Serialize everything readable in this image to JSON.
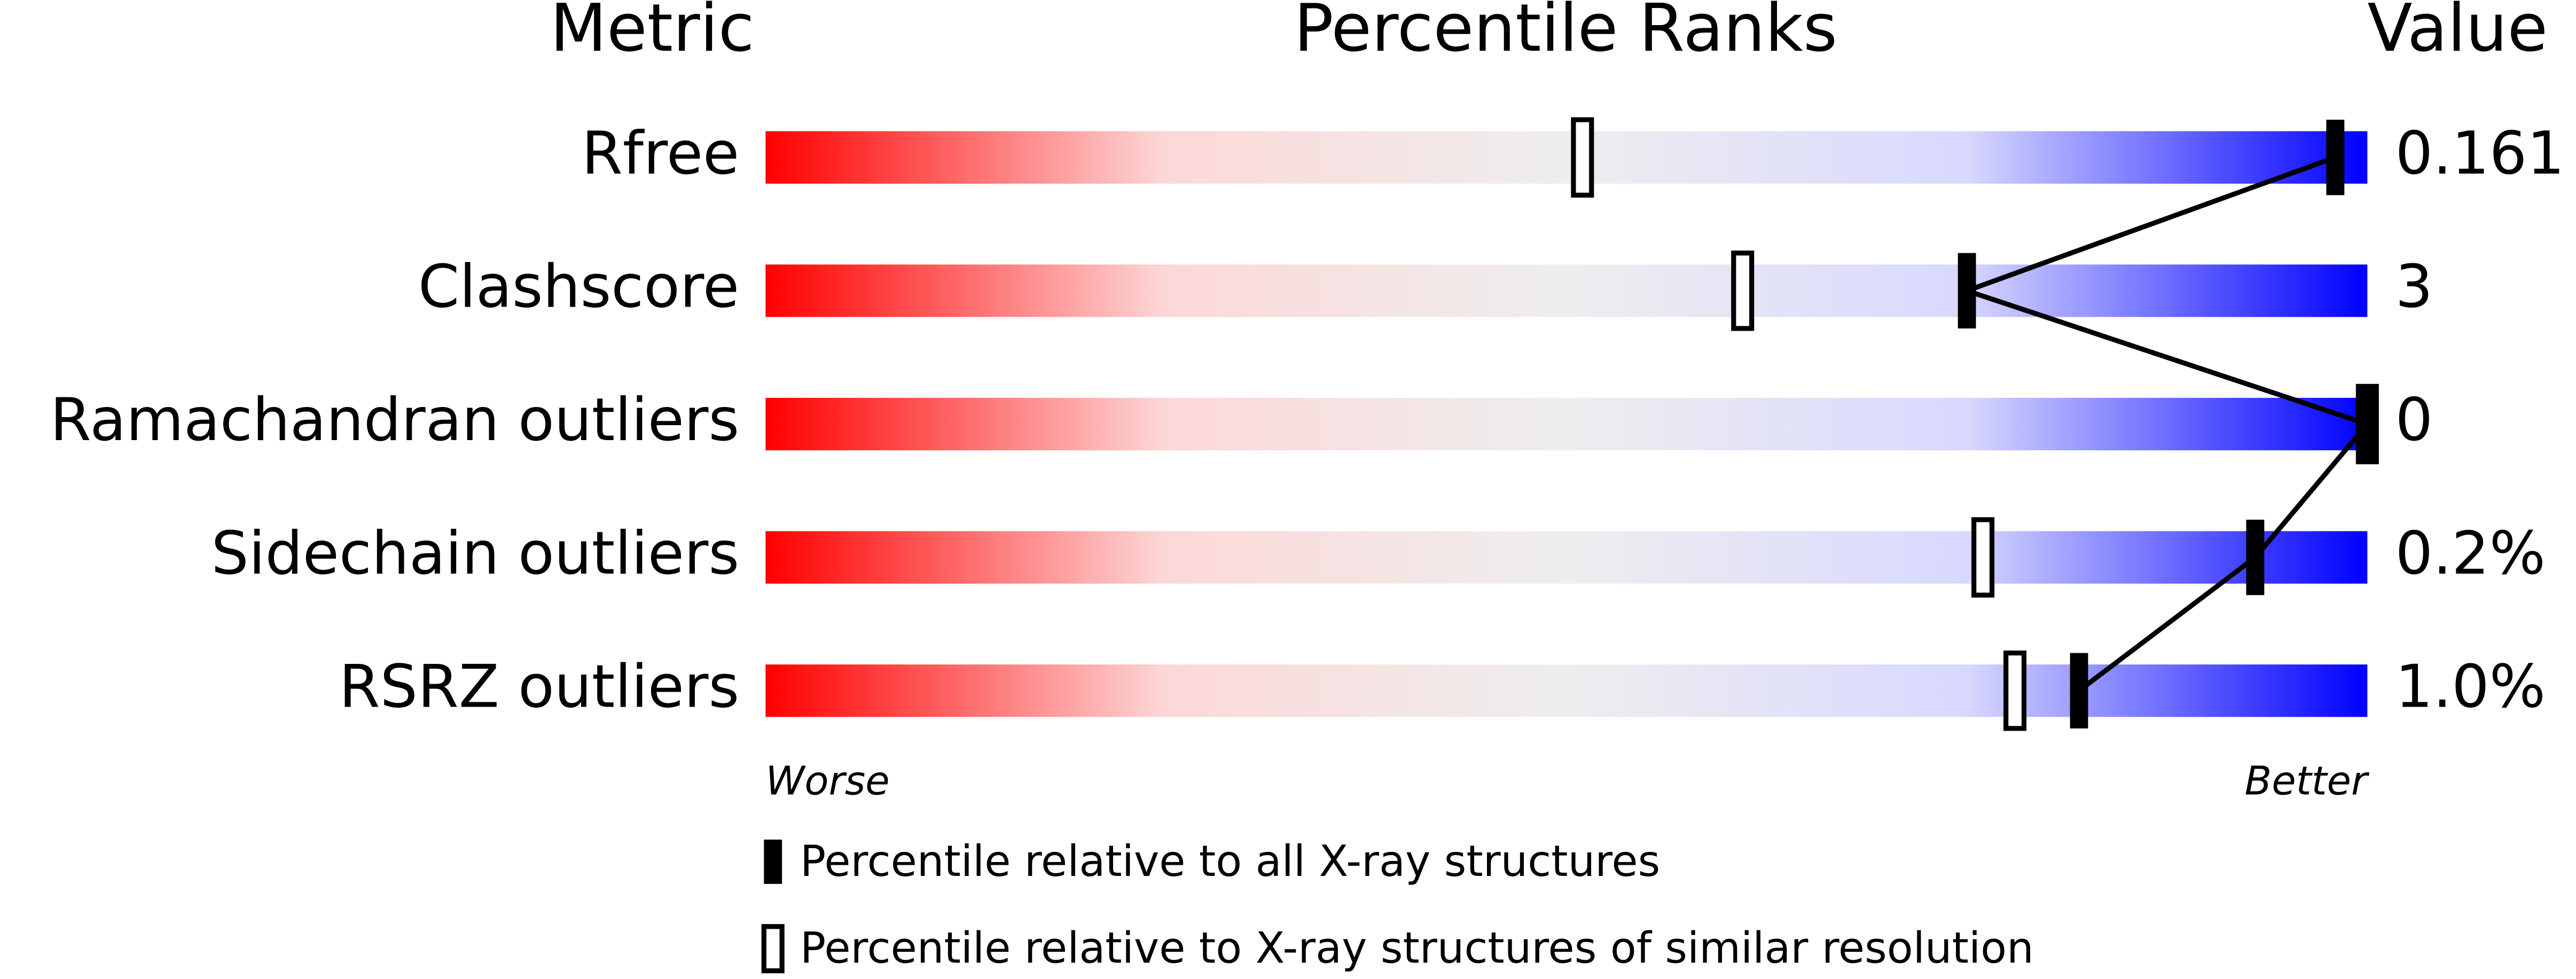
{
  "chart_data": {
    "type": "percentile",
    "header": {
      "metric": "Metric",
      "ranks": "Percentile Ranks",
      "value": "Value"
    },
    "categories": [
      "Rfree",
      "Clashscore",
      "Ramachandran outliers",
      "Sidechain outliers",
      "RSRZ outliers"
    ],
    "metric_values": [
      "0.161",
      "3",
      "0",
      "0.2%",
      "1.0%"
    ],
    "series": [
      {
        "name": "Percentile relative to all X-ray structures",
        "color": "#000000",
        "style": "filled",
        "values": [
          98,
          75,
          100,
          93,
          82
        ]
      },
      {
        "name": "Percentile relative to X-ray structures of similar resolution",
        "color": "#000000",
        "style": "open",
        "values": [
          51,
          61,
          100,
          76,
          78
        ]
      }
    ],
    "xlim": [
      0,
      100
    ],
    "worse_label": "Worse",
    "better_label": "Better",
    "gradient": [
      "#ff0000",
      "#fdd8d8",
      "#eeeeee",
      "#d8d8ff",
      "#0000ff"
    ]
  }
}
